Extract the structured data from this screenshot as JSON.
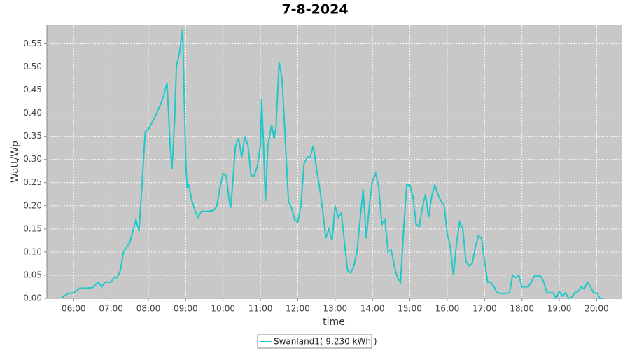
{
  "chart_data": {
    "type": "line",
    "title": "7-8-2024",
    "x_label": "time",
    "y_label": "Watt/Wp",
    "x": [
      "05:40",
      "05:50",
      "06:00",
      "06:10",
      "06:20",
      "06:30",
      "06:40",
      "06:45",
      "06:50",
      "07:00",
      "07:05",
      "07:10",
      "07:15",
      "07:20",
      "07:30",
      "07:40",
      "07:45",
      "07:50",
      "07:55",
      "08:00",
      "08:10",
      "08:20",
      "08:25",
      "08:30",
      "08:35",
      "08:38",
      "08:42",
      "08:45",
      "08:50",
      "08:55",
      "09:00",
      "09:02",
      "09:05",
      "09:10",
      "09:15",
      "09:20",
      "09:25",
      "09:35",
      "09:45",
      "09:50",
      "09:55",
      "10:00",
      "10:05",
      "10:10",
      "10:12",
      "10:15",
      "10:20",
      "10:25",
      "10:30",
      "10:35",
      "10:40",
      "10:45",
      "10:50",
      "10:55",
      "11:00",
      "11:02",
      "11:05",
      "11:08",
      "11:12",
      "11:18",
      "11:22",
      "11:25",
      "11:30",
      "11:35",
      "11:40",
      "11:45",
      "11:50",
      "11:55",
      "12:00",
      "12:05",
      "12:10",
      "12:15",
      "12:20",
      "12:25",
      "12:30",
      "12:35",
      "12:40",
      "12:45",
      "12:50",
      "12:55",
      "13:00",
      "13:05",
      "13:10",
      "13:15",
      "13:20",
      "13:25",
      "13:30",
      "13:35",
      "13:40",
      "13:45",
      "13:50",
      "13:55",
      "14:00",
      "14:05",
      "14:10",
      "14:15",
      "14:20",
      "14:25",
      "14:30",
      "14:35",
      "14:40",
      "14:45",
      "14:50",
      "14:55",
      "15:00",
      "15:05",
      "15:10",
      "15:15",
      "15:20",
      "15:25",
      "15:30",
      "15:35",
      "15:40",
      "15:45",
      "15:50",
      "15:55",
      "16:00",
      "16:05",
      "16:10",
      "16:15",
      "16:20",
      "16:25",
      "16:30",
      "16:35",
      "16:40",
      "16:45",
      "16:50",
      "16:55",
      "17:00",
      "17:05",
      "17:10",
      "17:15",
      "17:20",
      "17:30",
      "17:40",
      "17:45",
      "17:50",
      "17:55",
      "18:00",
      "18:05",
      "18:10",
      "18:15",
      "18:20",
      "18:30",
      "18:35",
      "18:40",
      "18:50",
      "18:55",
      "19:00",
      "19:05",
      "19:10",
      "19:15",
      "19:20",
      "19:25",
      "19:30",
      "19:35",
      "19:40",
      "19:45",
      "19:50",
      "19:55",
      "20:00",
      "20:05",
      "20:10"
    ],
    "series": [
      {
        "name": "Swanland1( 9.230 kWh )",
        "color": "#1fc9c9",
        "values": [
          0,
          0.01,
          0.012,
          0.022,
          0.022,
          0.023,
          0.035,
          0.025,
          0.035,
          0.035,
          0.045,
          0.045,
          0.06,
          0.1,
          0.12,
          0.17,
          0.145,
          0.25,
          0.36,
          0.365,
          0.39,
          0.42,
          0.44,
          0.465,
          0.33,
          0.28,
          0.38,
          0.5,
          0.53,
          0.58,
          0.3,
          0.24,
          0.245,
          0.21,
          0.19,
          0.175,
          0.188,
          0.188,
          0.19,
          0.2,
          0.24,
          0.27,
          0.265,
          0.21,
          0.195,
          0.24,
          0.33,
          0.345,
          0.305,
          0.35,
          0.33,
          0.265,
          0.265,
          0.285,
          0.33,
          0.43,
          0.33,
          0.21,
          0.33,
          0.375,
          0.345,
          0.37,
          0.51,
          0.47,
          0.34,
          0.21,
          0.195,
          0.17,
          0.165,
          0.2,
          0.29,
          0.305,
          0.305,
          0.33,
          0.28,
          0.24,
          0.19,
          0.13,
          0.15,
          0.125,
          0.2,
          0.175,
          0.185,
          0.12,
          0.06,
          0.055,
          0.07,
          0.1,
          0.17,
          0.235,
          0.13,
          0.2,
          0.255,
          0.27,
          0.24,
          0.16,
          0.17,
          0.1,
          0.105,
          0.07,
          0.045,
          0.035,
          0.15,
          0.245,
          0.245,
          0.22,
          0.16,
          0.155,
          0.195,
          0.225,
          0.175,
          0.22,
          0.245,
          0.225,
          0.21,
          0.2,
          0.14,
          0.11,
          0.05,
          0.12,
          0.165,
          0.15,
          0.08,
          0.07,
          0.075,
          0.11,
          0.135,
          0.13,
          0.08,
          0.035,
          0.035,
          0.025,
          0.012,
          0.01,
          0.012,
          0.05,
          0.045,
          0.05,
          0.025,
          0.025,
          0.025,
          0.035,
          0.048,
          0.048,
          0.035,
          0.012,
          0.012,
          0,
          0.015,
          0.005,
          0.012,
          0,
          0.003,
          0.012,
          0.015,
          0.025,
          0.02,
          0.035,
          0.025,
          0.012,
          0.012,
          0,
          0
        ]
      }
    ],
    "xlim": [
      "05:17",
      "20:40"
    ],
    "xticks": [
      "06:00",
      "07:00",
      "08:00",
      "09:00",
      "10:00",
      "11:00",
      "12:00",
      "13:00",
      "14:00",
      "15:00",
      "16:00",
      "17:00",
      "18:00",
      "19:00",
      "20:00"
    ],
    "ylim": [
      0,
      0.59
    ],
    "yticks": [
      {
        "value": 0,
        "label": "0.00"
      },
      {
        "value": 0.05,
        "label": "0.05"
      },
      {
        "value": 0.1,
        "label": "0.10"
      },
      {
        "value": 0.15,
        "label": "0.15"
      },
      {
        "value": 0.2,
        "label": "0.20"
      },
      {
        "value": 0.25,
        "label": "0.25"
      },
      {
        "value": 0.3,
        "label": "0.30"
      },
      {
        "value": 0.35,
        "label": "0.35"
      },
      {
        "value": 0.4,
        "label": "0.40"
      },
      {
        "value": 0.45,
        "label": "0.45"
      },
      {
        "value": 0.5,
        "label": "0.50"
      },
      {
        "value": 0.55,
        "label": "0.55"
      }
    ],
    "grid": true
  }
}
